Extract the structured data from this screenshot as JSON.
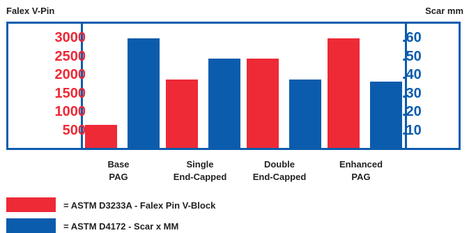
{
  "header": {
    "left_label": "Falex  V-Pin",
    "right_label": "Scar mm"
  },
  "colors": {
    "frame": "#0b5cad",
    "series_falex": "#ee2a36",
    "series_scar": "#0b5cad"
  },
  "chart_data": {
    "type": "bar",
    "categories": [
      "Base\nPAG",
      "Single\nEnd-Capped",
      "Double\nEnd-Capped",
      "Enhanced\nPAG"
    ],
    "left_axis": {
      "ticks": [
        "3000",
        "2500",
        "2000",
        "1500",
        "1000",
        "500"
      ],
      "ylim": [
        250,
        3250
      ]
    },
    "right_axis": {
      "ticks": [
        ".60",
        ".50",
        ".40",
        ".30",
        ".20",
        ".10"
      ],
      "ylim": [
        0.05,
        0.65
      ]
    },
    "series": [
      {
        "name": "= ASTM D3233A - Falex Pin V-Block",
        "axis": "left",
        "values": [
          800,
          1900,
          2400,
          2900
        ]
      },
      {
        "name": "= ASTM D4172 - Scar x MM",
        "axis": "right",
        "values": [
          0.58,
          0.48,
          0.38,
          0.37
        ]
      }
    ],
    "grid": false,
    "legend": "bottom-left"
  }
}
